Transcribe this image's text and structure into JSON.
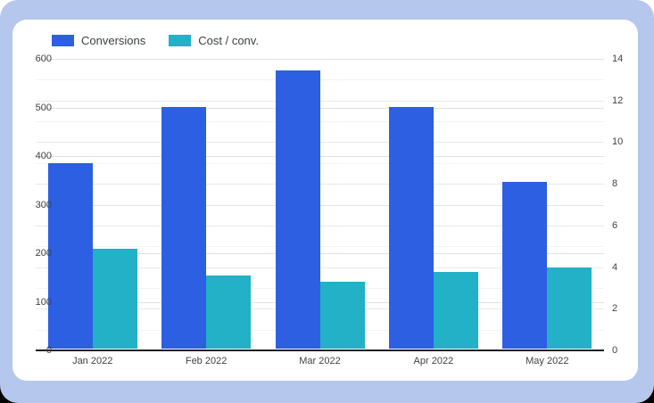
{
  "colors": {
    "frame_blue": "#b5c7ec",
    "card_white": "#ffffff",
    "conversions_blue": "#2d5fe3",
    "cost_teal": "#22b1c7",
    "axis_text": "#424242",
    "legend_text": "#3c4043",
    "baseline": "#1f1f1f"
  },
  "chart_data": {
    "type": "bar",
    "title": "",
    "categories": [
      "Jan 2022",
      "Feb 2022",
      "Mar 2022",
      "Apr 2022",
      "May 2022"
    ],
    "series": [
      {
        "name": "Conversions",
        "axis": "left",
        "color": "#2d5fe3",
        "values": [
          381,
          497,
          572,
          498,
          343
        ]
      },
      {
        "name": "Cost / conv.",
        "axis": "right",
        "color": "#22b1c7",
        "values": [
          4.8,
          3.5,
          3.2,
          3.7,
          3.9
        ]
      }
    ],
    "left_axis": {
      "min": 0,
      "max": 600,
      "tick_step": 100,
      "ticks": [
        "0",
        "100",
        "200",
        "300",
        "400",
        "500",
        "600"
      ]
    },
    "right_axis": {
      "min": 0,
      "max": 14,
      "tick_step": 2,
      "ticks": [
        "0",
        "2",
        "4",
        "6",
        "8",
        "10",
        "12",
        "14"
      ]
    },
    "grid": true,
    "legend_position": "top-left",
    "bar_grouping": "paired, no gap within group"
  }
}
